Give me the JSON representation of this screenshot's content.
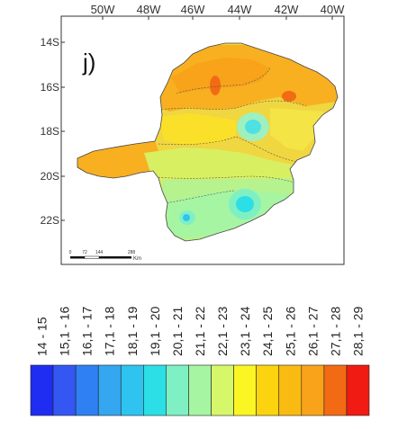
{
  "panel_label": "j)",
  "longitude_labels": [
    "50W",
    "48W",
    "46W",
    "44W",
    "42W",
    "40W"
  ],
  "latitude_labels": [
    "14S",
    "16S",
    "18S",
    "20S",
    "22S"
  ],
  "scale_bar": {
    "ticks": [
      "0",
      "72",
      "144",
      "288"
    ],
    "unit": "Km"
  },
  "legend": {
    "classes": [
      {
        "label": "14 - 15",
        "color": "#1f2cf2"
      },
      {
        "label": "15,1 - 16",
        "color": "#3457f4"
      },
      {
        "label": "16,1 - 17",
        "color": "#2f80f3"
      },
      {
        "label": "17,1 - 18",
        "color": "#35a6f0"
      },
      {
        "label": "18,1 - 19",
        "color": "#2fc4ef"
      },
      {
        "label": "19,1 - 20",
        "color": "#2cdfe6"
      },
      {
        "label": "20,1 - 21",
        "color": "#7ff0c4"
      },
      {
        "label": "21,1 - 22",
        "color": "#a6f5a2"
      },
      {
        "label": "22,1 - 23",
        "color": "#d6f76a"
      },
      {
        "label": "23,1 - 24",
        "color": "#fbf523"
      },
      {
        "label": "24,1 - 25",
        "color": "#fbd40f"
      },
      {
        "label": "25,1 - 26",
        "color": "#f9bb12"
      },
      {
        "label": "26,1 - 27",
        "color": "#f8a31a"
      },
      {
        "label": "27,1 - 28",
        "color": "#f36a14"
      },
      {
        "label": "28,1 - 29",
        "color": "#f01b12"
      }
    ]
  }
}
